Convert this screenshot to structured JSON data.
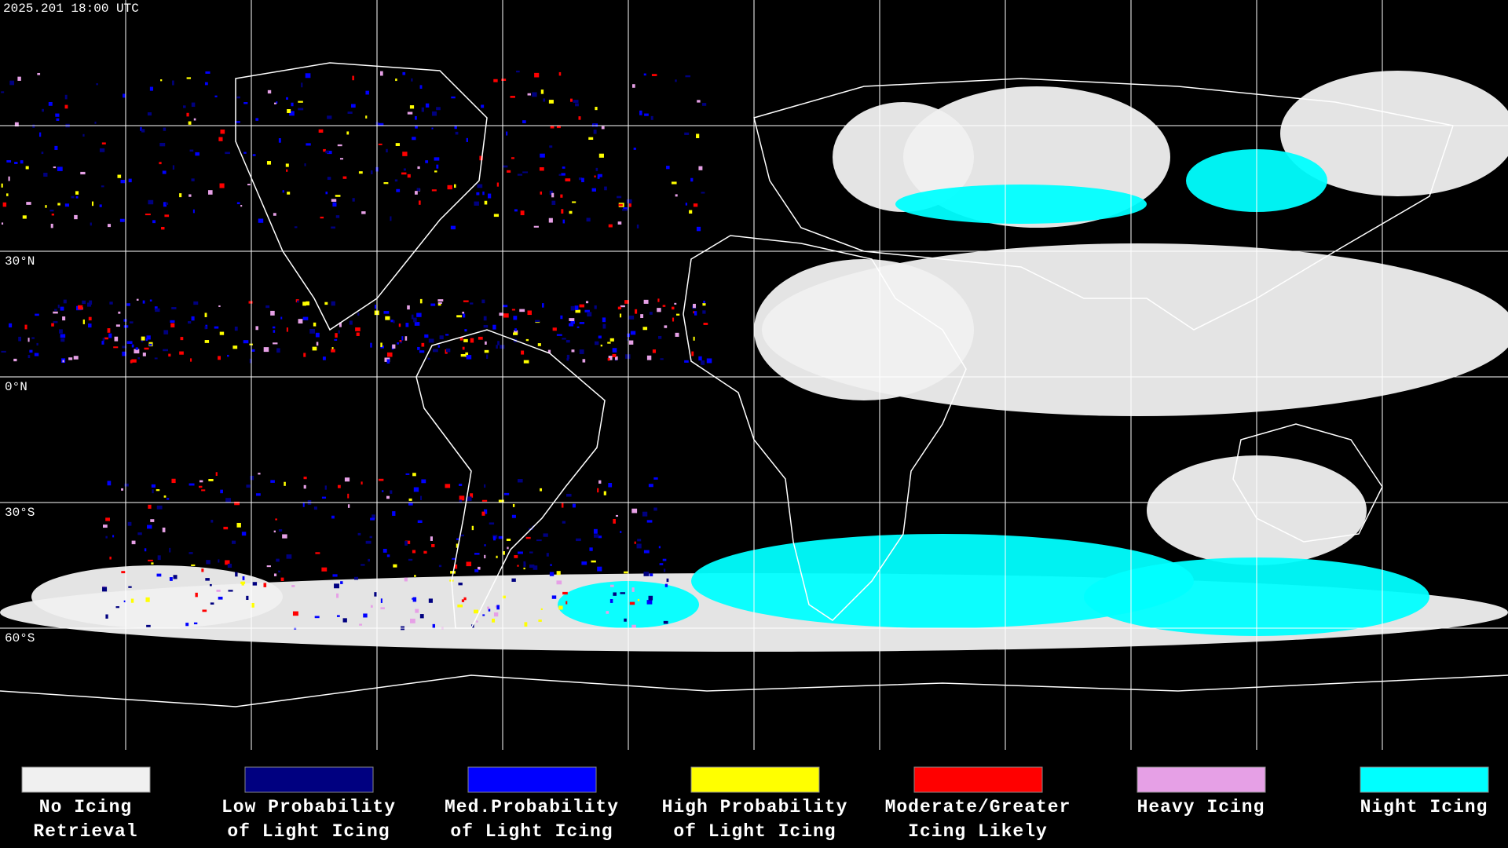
{
  "header": {
    "timestamp": "2025.201 18:00 UTC"
  },
  "map": {
    "latitude_labels": [
      "30°N",
      "0°N",
      "30°S",
      "60°S"
    ]
  },
  "legend": [
    {
      "color": "#f0f0f0",
      "label": [
        "No Icing",
        "Retrieval"
      ]
    },
    {
      "color": "#000080",
      "label": [
        "Low Probability",
        "of Light Icing"
      ]
    },
    {
      "color": "#0000ff",
      "label": [
        "Med.Probability",
        "of Light Icing"
      ]
    },
    {
      "color": "#ffff00",
      "label": [
        "High Probability",
        "of Light Icing"
      ]
    },
    {
      "color": "#ff0000",
      "label": [
        "Moderate/Greater",
        "Icing Likely"
      ]
    },
    {
      "color": "#e6a0e6",
      "label": [
        "Heavy Icing"
      ]
    },
    {
      "color": "#00ffff",
      "label": [
        "Night Icing"
      ]
    }
  ]
}
